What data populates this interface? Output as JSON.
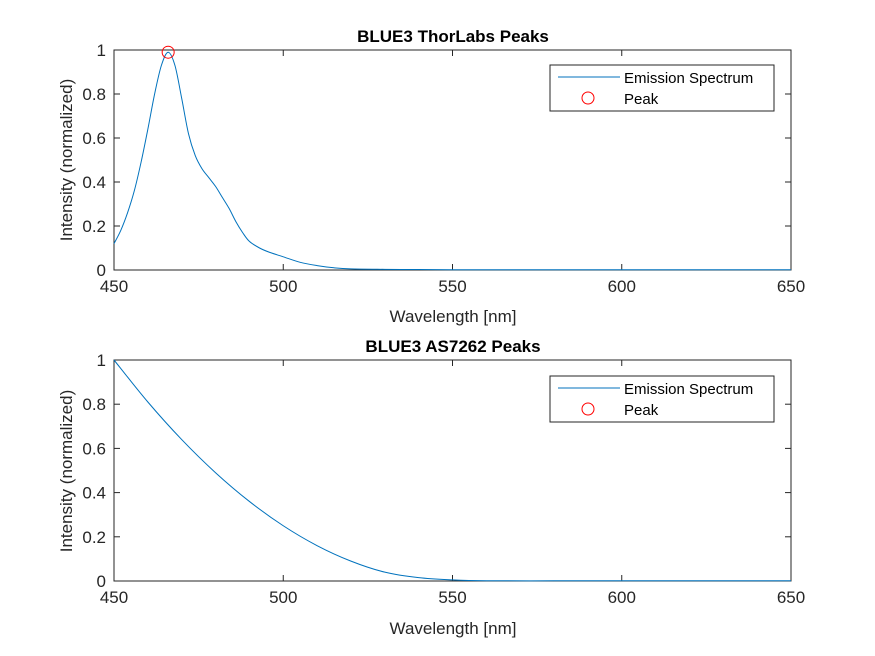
{
  "figure": {
    "background": "#ffffff"
  },
  "colors": {
    "line": "#0072BD",
    "peak": "#FF0000",
    "axis": "#262626"
  },
  "chart_data": [
    {
      "type": "line",
      "title": "BLUE3 ThorLabs Peaks",
      "xlabel": "Wavelength [nm]",
      "ylabel": "Intensity (normalized)",
      "xlim": [
        450,
        650
      ],
      "ylim": [
        0,
        1
      ],
      "xticks": [
        "450",
        "500",
        "550",
        "600",
        "650"
      ],
      "yticks": [
        "0",
        "0.2",
        "0.4",
        "0.6",
        "0.8",
        "1"
      ],
      "legend": {
        "position": "top-right",
        "entries": [
          "Emission Spectrum",
          "Peak"
        ]
      },
      "series": [
        {
          "name": "Emission Spectrum",
          "x": [
            450,
            452,
            454,
            456,
            458,
            460,
            462,
            464,
            466,
            468,
            470,
            472,
            474,
            476,
            478,
            480,
            482,
            484,
            486,
            488,
            490,
            493,
            496,
            500,
            505,
            510,
            515,
            520,
            530,
            540,
            550,
            560,
            580,
            600,
            625,
            650
          ],
          "y": [
            0.12,
            0.18,
            0.26,
            0.36,
            0.49,
            0.64,
            0.8,
            0.93,
            0.99,
            0.93,
            0.78,
            0.62,
            0.52,
            0.46,
            0.42,
            0.38,
            0.33,
            0.28,
            0.22,
            0.17,
            0.13,
            0.1,
            0.08,
            0.06,
            0.035,
            0.02,
            0.01,
            0.005,
            0.003,
            0.002,
            0.001,
            0.001,
            0.001,
            0.001,
            0.001,
            0.001
          ]
        }
      ],
      "peaks": [
        {
          "name": "Peak",
          "x": 466,
          "y": 0.99
        }
      ]
    },
    {
      "type": "line",
      "title": "BLUE3 AS7262 Peaks",
      "xlabel": "Wavelength [nm]",
      "ylabel": "Intensity (normalized)",
      "xlim": [
        450,
        650
      ],
      "ylim": [
        0,
        1
      ],
      "xticks": [
        "450",
        "500",
        "550",
        "600",
        "650"
      ],
      "yticks": [
        "0",
        "0.2",
        "0.4",
        "0.6",
        "0.8",
        "1"
      ],
      "legend": {
        "position": "top-right",
        "entries": [
          "Emission Spectrum",
          "Peak"
        ]
      },
      "series": [
        {
          "name": "Emission Spectrum",
          "x": [
            450,
            460,
            470,
            480,
            490,
            500,
            510,
            520,
            530,
            540,
            550,
            560,
            580,
            600,
            625,
            650
          ],
          "y": [
            1.0,
            0.81,
            0.64,
            0.49,
            0.36,
            0.25,
            0.16,
            0.09,
            0.04,
            0.015,
            0.005,
            0.001,
            0.001,
            0.001,
            0.001,
            0.001
          ]
        }
      ],
      "peaks": []
    }
  ]
}
